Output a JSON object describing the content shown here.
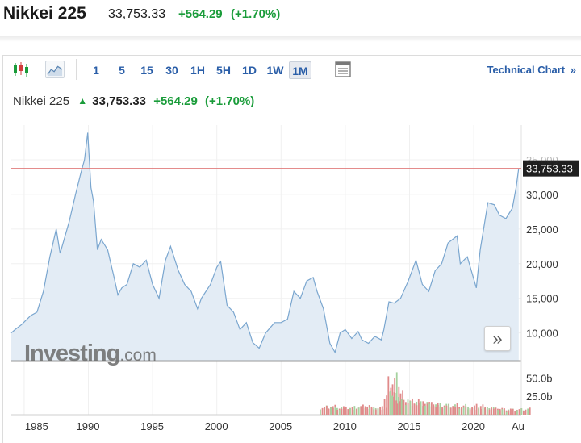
{
  "header": {
    "instrument": "Nikkei 225",
    "price": "33,753.33",
    "change": "+564.29",
    "change_pct": "(+1.70%)"
  },
  "toolbar": {
    "timeframes": [
      "1",
      "5",
      "15",
      "30",
      "1H",
      "5H",
      "1D",
      "1W",
      "1M"
    ],
    "active": "1M",
    "technical_link": "Technical Chart",
    "technical_arrow": "»"
  },
  "legend": {
    "name": "Nikkei 225",
    "price": "33,753.33",
    "change": "+564.29",
    "change_pct": "(+1.70%)"
  },
  "watermark": {
    "brand": "Investing",
    "suffix": ".com"
  },
  "nav_button": "»",
  "colors": {
    "line": "#7aa6cf",
    "area": "#e3ecf5",
    "up": "#1a9c3a",
    "price_line": "#e07b7b",
    "price_tag_bg": "#1f1f1f",
    "vol_up": "#a6d2a0",
    "vol_down": "#e08a8a"
  },
  "chart_data": {
    "type": "area",
    "x_ticks": [
      "1985",
      "1990",
      "1995",
      "2000",
      "2005",
      "2010",
      "2015",
      "2020",
      "Au"
    ],
    "y_ticks": [
      10000,
      15000,
      20000,
      25000,
      30000,
      35000
    ],
    "y_tick_labels": [
      "10,000",
      "15,000",
      "20,000",
      "25,000",
      "30,000",
      "35,000"
    ],
    "xlim": [
      1984.0,
      2023.7
    ],
    "ylim": [
      6000,
      40000
    ],
    "last_price": 33753.33,
    "last_price_label": "33,753.33",
    "series": [
      {
        "x": [
          1984.0,
          1984.3,
          1984.8,
          1985.5,
          1986.0,
          1986.5,
          1987.0,
          1987.5,
          1987.8,
          1988.5,
          1989.0,
          1989.4,
          1989.7,
          1989.95,
          1990.2,
          1990.4,
          1990.7,
          1991.0,
          1991.5,
          1992.0,
          1992.3,
          1992.6,
          1993.0,
          1993.5,
          1994.0,
          1994.5,
          1995.0,
          1995.5,
          1996.0,
          1996.4,
          1997.0,
          1997.5,
          1998.0,
          1998.5,
          1998.8,
          1999.5,
          2000.0,
          2000.3,
          2000.8,
          2001.3,
          2001.8,
          2002.3,
          2002.8,
          2003.3,
          2003.8,
          2004.5,
          2005.0,
          2005.5,
          2006.0,
          2006.5,
          2007.0,
          2007.5,
          2007.8,
          2008.3,
          2008.8,
          2009.2,
          2009.6,
          2010.0,
          2010.5,
          2011.0,
          2011.3,
          2011.8,
          2012.3,
          2012.8,
          2013.0,
          2013.4,
          2013.8,
          2014.3,
          2014.9,
          2015.5,
          2016.0,
          2016.5,
          2017.0,
          2017.5,
          2018.0,
          2018.7,
          2018.95,
          2019.5,
          2020.2,
          2020.5,
          2020.9,
          2021.1,
          2021.6,
          2022.0,
          2022.5,
          2023.0,
          2023.3,
          2023.5
        ],
        "y": [
          10000,
          10500,
          11200,
          12500,
          13000,
          16000,
          21000,
          25000,
          21500,
          26000,
          30000,
          33000,
          35000,
          38900,
          31000,
          29000,
          22000,
          23500,
          22000,
          18000,
          15500,
          16500,
          17000,
          20000,
          19500,
          20500,
          17000,
          15000,
          20500,
          22500,
          19000,
          17000,
          16000,
          13500,
          15000,
          17000,
          19500,
          20300,
          14000,
          13000,
          10500,
          11500,
          8600,
          7800,
          10000,
          11500,
          11500,
          12000,
          16000,
          15000,
          17500,
          18000,
          16000,
          13500,
          8500,
          7200,
          10000,
          10500,
          9200,
          10200,
          9000,
          8500,
          9500,
          9000,
          10500,
          14500,
          14300,
          15000,
          17500,
          20500,
          17000,
          16000,
          19000,
          20000,
          23000,
          24000,
          20000,
          21000,
          16500,
          22000,
          26500,
          28800,
          28500,
          27000,
          26500,
          28000,
          31000,
          33753
        ]
      }
    ],
    "volume": {
      "y_ticks": [
        25000000000,
        50000000000
      ],
      "y_tick_labels": [
        "25.0b",
        "50.0b"
      ],
      "ylim": [
        0,
        70000000000
      ],
      "x": [
        2008,
        2008.5,
        2009,
        2009.5,
        2010,
        2010.5,
        2011,
        2011.5,
        2012,
        2012.5,
        2013,
        2013.3,
        2013.6,
        2014,
        2014.5,
        2015,
        2015.5,
        2016,
        2016.5,
        2017,
        2017.5,
        2018,
        2018.5,
        2019,
        2019.5,
        2020,
        2020.5,
        2021,
        2021.5,
        2022,
        2022.5,
        2023,
        2023.5
      ],
      "values": [
        13000000000,
        14000000000,
        12000000000,
        11000000000,
        12000000000,
        13000000000,
        15000000000,
        12000000000,
        11000000000,
        12000000000,
        38000000000,
        60000000000,
        35000000000,
        25000000000,
        22000000000,
        24000000000,
        20000000000,
        19000000000,
        18000000000,
        16000000000,
        15000000000,
        17000000000,
        15000000000,
        13000000000,
        12000000000,
        16000000000,
        12000000000,
        11000000000,
        10000000000,
        9000000000,
        8500000000,
        9000000000,
        10000000000
      ]
    }
  }
}
